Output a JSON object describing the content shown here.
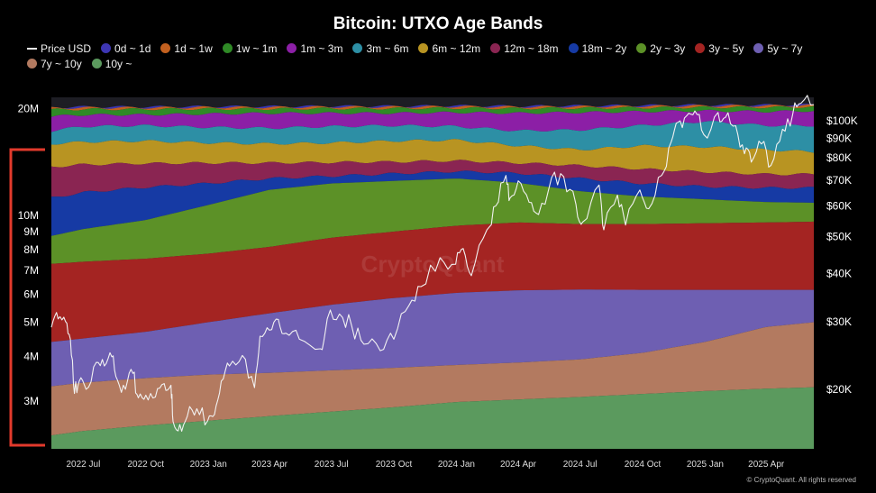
{
  "chart_data": {
    "type": "area",
    "title": "Bitcoin: UTXO Age Bands",
    "credit": "© CryptoQuant. All rights reserved",
    "watermark": "CryptoQuant",
    "legend_position": "top",
    "x_range": [
      "2022-05-15",
      "2025-06-10"
    ],
    "x_ticks": [
      {
        "date": "2022-07-01",
        "label": "2022 Jul"
      },
      {
        "date": "2022-10-01",
        "label": "2022 Oct"
      },
      {
        "date": "2023-01-01",
        "label": "2023 Jan"
      },
      {
        "date": "2023-04-01",
        "label": "2023 Apr"
      },
      {
        "date": "2023-07-01",
        "label": "2023 Jul"
      },
      {
        "date": "2023-10-01",
        "label": "2023 Oct"
      },
      {
        "date": "2024-01-01",
        "label": "2024 Jan"
      },
      {
        "date": "2024-04-01",
        "label": "2024 Apr"
      },
      {
        "date": "2024-07-01",
        "label": "2024 Jul"
      },
      {
        "date": "2024-10-01",
        "label": "2024 Oct"
      },
      {
        "date": "2025-01-01",
        "label": "2025 Jan"
      },
      {
        "date": "2025-04-01",
        "label": "2025 Apr"
      }
    ],
    "left_axis": {
      "scale": "log",
      "range": [
        2200000,
        21500000
      ],
      "ticks": [
        {
          "v": 20000000,
          "label": "20M"
        },
        {
          "v": 10000000,
          "label": "10M"
        },
        {
          "v": 9000000,
          "label": "9M"
        },
        {
          "v": 8000000,
          "label": "8M"
        },
        {
          "v": 7000000,
          "label": "7M"
        },
        {
          "v": 6000000,
          "label": "6M"
        },
        {
          "v": 5000000,
          "label": "5M"
        },
        {
          "v": 4000000,
          "label": "4M"
        },
        {
          "v": 3000000,
          "label": "3M"
        }
      ]
    },
    "right_axis": {
      "scale": "log",
      "range": [
        14000,
        115000
      ],
      "ticks": [
        {
          "v": 100000,
          "label": "$100K"
        },
        {
          "v": 90000,
          "label": "$90K"
        },
        {
          "v": 80000,
          "label": "$80K"
        },
        {
          "v": 70000,
          "label": "$70K"
        },
        {
          "v": 60000,
          "label": "$60K"
        },
        {
          "v": 50000,
          "label": "$50K"
        },
        {
          "v": 40000,
          "label": "$40K"
        },
        {
          "v": 30000,
          "label": "$30K"
        },
        {
          "v": 20000,
          "label": "$20K"
        }
      ]
    },
    "band_dates": [
      "2022-05-15",
      "2022-07-01",
      "2022-10-01",
      "2023-01-01",
      "2023-04-01",
      "2023-07-01",
      "2023-10-01",
      "2024-01-01",
      "2024-04-01",
      "2024-07-01",
      "2024-10-01",
      "2025-01-01",
      "2025-04-01",
      "2025-06-10"
    ],
    "series": [
      {
        "name": "10y ~",
        "color": "#5b9a5e",
        "cumulative_top": [
          2400000,
          2470000,
          2560000,
          2640000,
          2720000,
          2800000,
          2880000,
          2980000,
          3030000,
          3080000,
          3140000,
          3200000,
          3250000,
          3280000
        ]
      },
      {
        "name": "7y ~ 10y",
        "color": "#b37a60",
        "cumulative_top": [
          3300000,
          3380000,
          3480000,
          3560000,
          3600000,
          3660000,
          3720000,
          3790000,
          3850000,
          3930000,
          4100000,
          4400000,
          4850000,
          5000000
        ]
      },
      {
        "name": "5y ~ 7y",
        "color": "#6e5fb2",
        "cumulative_top": [
          4400000,
          4500000,
          4700000,
          5000000,
          5300000,
          5600000,
          5850000,
          6050000,
          6150000,
          6180000,
          6170000,
          6170000,
          6170000,
          6170000
        ]
      },
      {
        "name": "3y ~ 5y",
        "color": "#a42422",
        "cumulative_top": [
          7300000,
          7400000,
          7550000,
          7800000,
          8150000,
          8650000,
          9000000,
          9350000,
          9550000,
          9450000,
          9450000,
          9500000,
          9550000,
          9600000
        ]
      },
      {
        "name": "2y ~ 3y",
        "color": "#5c9127",
        "cumulative_top": [
          8750000,
          9150000,
          9700000,
          10700000,
          11800000,
          12300000,
          12500000,
          12700000,
          12350000,
          11700000,
          11300000,
          11100000,
          10900000,
          10850000
        ]
      },
      {
        "name": "18m ~ 2y",
        "color": "#163aa4",
        "cumulative_top": [
          11200000,
          11600000,
          12000000,
          12300000,
          12700000,
          12900000,
          13100000,
          13300000,
          13150000,
          12700000,
          12300000,
          12050000,
          11950000,
          11950000
        ]
      },
      {
        "name": "12m ~ 18m",
        "color": "#8a2552",
        "cumulative_top": [
          13700000,
          13900000,
          14000000,
          14050000,
          14050000,
          14100000,
          14150000,
          14250000,
          14050000,
          13800000,
          13500000,
          13250000,
          13050000,
          13050000
        ]
      },
      {
        "name": "6m ~ 12m",
        "color": "#b89422",
        "cumulative_top": [
          15900000,
          16100000,
          16200000,
          16000000,
          15900000,
          16000000,
          16200000,
          16300000,
          15700000,
          15300000,
          15700000,
          15600000,
          15300000,
          15100000
        ]
      },
      {
        "name": "3m ~ 6m",
        "color": "#2d8fa5",
        "cumulative_top": [
          17300000,
          17800000,
          17900000,
          17700000,
          17600000,
          17800000,
          17900000,
          17800000,
          17300000,
          17400000,
          17900000,
          18400000,
          17900000,
          17900000
        ]
      },
      {
        "name": "1m ~ 3m",
        "color": "#8c1fa6",
        "cumulative_top": [
          19000000,
          19200000,
          19200000,
          19300000,
          19400000,
          19400000,
          19400000,
          19500000,
          19400000,
          19500000,
          19600000,
          19700000,
          19600000,
          19700000
        ]
      },
      {
        "name": "1w ~ 1m",
        "color": "#2f8a26",
        "cumulative_top": [
          19850000,
          19900000,
          19900000,
          19950000,
          19950000,
          20000000,
          20000000,
          20050000,
          20000000,
          20050000,
          20100000,
          20150000,
          20150000,
          20200000
        ]
      },
      {
        "name": "1d ~ 1w",
        "color": "#c2601f",
        "cumulative_top": [
          20050000,
          20100000,
          20100000,
          20150000,
          20150000,
          20200000,
          20200000,
          20250000,
          20200000,
          20250000,
          20300000,
          20350000,
          20350000,
          20400000
        ]
      },
      {
        "name": "0d ~ 1d",
        "color": "#3d36b4",
        "cumulative_top": [
          20150000,
          20200000,
          20200000,
          20250000,
          20250000,
          20300000,
          20300000,
          20350000,
          20300000,
          20350000,
          20400000,
          20450000,
          20450000,
          20500000
        ]
      }
    ],
    "price_series": {
      "name": "Price USD",
      "color": "#f2f2f2",
      "points": [
        [
          "2022-05-15",
          29000
        ],
        [
          "2022-05-25",
          30500
        ],
        [
          "2022-06-05",
          30000
        ],
        [
          "2022-06-12",
          27000
        ],
        [
          "2022-06-18",
          19500
        ],
        [
          "2022-06-25",
          21000
        ],
        [
          "2022-07-05",
          20000
        ],
        [
          "2022-07-20",
          23500
        ],
        [
          "2022-08-01",
          23000
        ],
        [
          "2022-08-12",
          24300
        ],
        [
          "2022-08-20",
          21200
        ],
        [
          "2022-09-01",
          20000
        ],
        [
          "2022-09-12",
          22000
        ],
        [
          "2022-09-20",
          19000
        ],
        [
          "2022-10-01",
          19300
        ],
        [
          "2022-10-15",
          19100
        ],
        [
          "2022-10-28",
          20700
        ],
        [
          "2022-11-07",
          20500
        ],
        [
          "2022-11-10",
          16500
        ],
        [
          "2022-11-20",
          16200
        ],
        [
          "2022-12-01",
          17000
        ],
        [
          "2022-12-15",
          17800
        ],
        [
          "2022-12-31",
          16550
        ],
        [
          "2023-01-10",
          17200
        ],
        [
          "2023-01-20",
          21000
        ],
        [
          "2023-02-01",
          23000
        ],
        [
          "2023-02-20",
          24500
        ],
        [
          "2023-03-10",
          20200
        ],
        [
          "2023-03-18",
          27500
        ],
        [
          "2023-04-01",
          28500
        ],
        [
          "2023-04-14",
          30400
        ],
        [
          "2023-04-25",
          28000
        ],
        [
          "2023-05-15",
          27000
        ],
        [
          "2023-06-15",
          25500
        ],
        [
          "2023-06-25",
          30500
        ],
        [
          "2023-07-13",
          31400
        ],
        [
          "2023-07-31",
          29200
        ],
        [
          "2023-08-18",
          26200
        ],
        [
          "2023-09-11",
          25200
        ],
        [
          "2023-10-01",
          27000
        ],
        [
          "2023-10-23",
          33000
        ],
        [
          "2023-11-10",
          37000
        ],
        [
          "2023-12-08",
          44000
        ],
        [
          "2023-12-31",
          42300
        ],
        [
          "2024-01-11",
          46500
        ],
        [
          "2024-01-23",
          39500
        ],
        [
          "2024-02-15",
          52000
        ],
        [
          "2024-02-28",
          60000
        ],
        [
          "2024-03-14",
          72000
        ],
        [
          "2024-03-20",
          63000
        ],
        [
          "2024-04-01",
          69700
        ],
        [
          "2024-04-17",
          61300
        ],
        [
          "2024-05-01",
          57000
        ],
        [
          "2024-05-20",
          71000
        ],
        [
          "2024-06-07",
          71500
        ],
        [
          "2024-06-25",
          60500
        ],
        [
          "2024-07-05",
          54500
        ],
        [
          "2024-07-29",
          68000
        ],
        [
          "2024-08-05",
          52000
        ],
        [
          "2024-08-25",
          64000
        ],
        [
          "2024-09-06",
          53500
        ],
        [
          "2024-09-27",
          66000
        ],
        [
          "2024-10-10",
          59000
        ],
        [
          "2024-10-29",
          72000
        ],
        [
          "2024-11-12",
          88000
        ],
        [
          "2024-11-22",
          99000
        ],
        [
          "2024-12-05",
          103000
        ],
        [
          "2024-12-17",
          106000
        ],
        [
          "2024-12-30",
          92000
        ],
        [
          "2025-01-20",
          105000
        ],
        [
          "2025-01-31",
          102000
        ],
        [
          "2025-02-15",
          97000
        ],
        [
          "2025-02-28",
          82000
        ],
        [
          "2025-03-10",
          78000
        ],
        [
          "2025-03-25",
          87000
        ],
        [
          "2025-04-08",
          76500
        ],
        [
          "2025-04-25",
          95000
        ],
        [
          "2025-05-10",
          104000
        ],
        [
          "2025-05-22",
          111000
        ],
        [
          "2025-06-10",
          110000
        ]
      ]
    }
  }
}
